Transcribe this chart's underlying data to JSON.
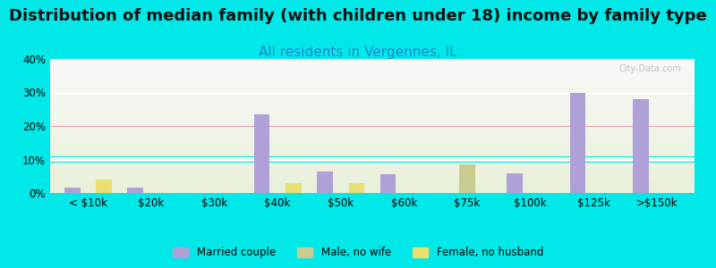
{
  "title": "Distribution of median family (with children under 18) income by family type",
  "subtitle": "All residents in Vergennes, IL",
  "categories": [
    "< $10k",
    "$20k",
    "$30k",
    "$40k",
    "$50k",
    "$60k",
    "$75k",
    "$100k",
    "$125k",
    ">$150k"
  ],
  "married_couple": [
    1.5,
    1.5,
    0,
    23.5,
    6.5,
    5.5,
    0,
    6.0,
    30.0,
    28.0
  ],
  "male_no_wife": [
    0,
    0,
    0,
    0,
    0,
    0,
    8.5,
    0,
    0,
    0
  ],
  "female_no_husband": [
    4.0,
    0,
    0,
    3.0,
    3.0,
    0,
    0,
    0,
    0,
    0
  ],
  "married_color": "#b0a0d8",
  "male_color": "#c8cc90",
  "female_color": "#e8e070",
  "ylim": [
    0,
    40
  ],
  "yticks": [
    0,
    10,
    20,
    30,
    40
  ],
  "background_top": "#e0f8f8",
  "background_bottom": "#d8eec8",
  "plot_bg_top": "#f8f8f8",
  "plot_bg_bottom": "#e8f0d8",
  "title_fontsize": 13,
  "subtitle_fontsize": 11,
  "subtitle_color": "#2288cc",
  "outer_bg_color": "#00e8e8",
  "bar_width": 0.25
}
